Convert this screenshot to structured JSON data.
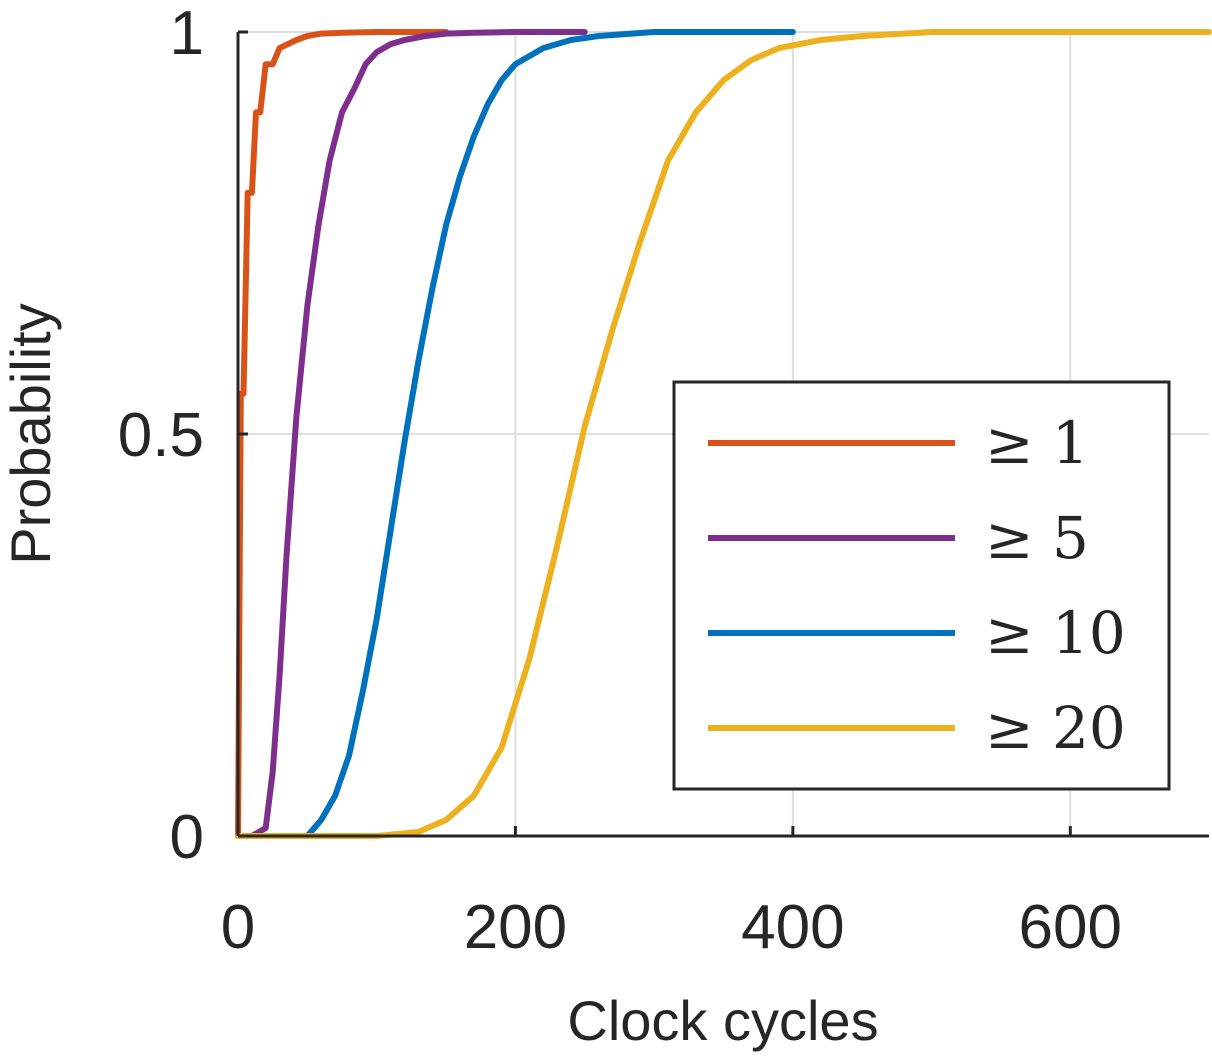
{
  "chart_data": {
    "type": "line",
    "title": "",
    "xlabel": "Clock cycles",
    "ylabel": "Probability",
    "xlim": [
      0,
      700
    ],
    "ylim": [
      0,
      1
    ],
    "xticks": [
      0,
      200,
      400,
      600
    ],
    "xtick_labels": [
      "0",
      "200",
      "400",
      "600"
    ],
    "yticks": [
      0,
      0.5,
      1
    ],
    "ytick_labels": [
      "0",
      "0.5",
      "1"
    ],
    "grid": true,
    "legend_position": "bottom-right",
    "series": [
      {
        "name": "≥ 1",
        "color": "#D95319",
        "x": [
          0,
          2,
          4,
          7,
          10,
          13,
          16,
          20,
          25,
          30,
          36,
          42,
          50,
          60,
          75,
          100,
          150
        ],
        "y": [
          0,
          0.55,
          0.55,
          0.8,
          0.8,
          0.9,
          0.9,
          0.96,
          0.96,
          0.98,
          0.985,
          0.99,
          0.995,
          0.998,
          0.999,
          1.0,
          1.0
        ]
      },
      {
        "name": "≥ 5",
        "color": "#7E2F8E",
        "x": [
          10,
          20,
          25,
          30,
          35,
          42,
          50,
          58,
          66,
          75,
          84,
          92,
          100,
          110,
          120,
          135,
          150,
          170,
          200,
          250
        ],
        "y": [
          0,
          0.01,
          0.08,
          0.2,
          0.35,
          0.52,
          0.66,
          0.76,
          0.84,
          0.9,
          0.93,
          0.96,
          0.975,
          0.985,
          0.99,
          0.995,
          0.998,
          0.999,
          1.0,
          1.0
        ]
      },
      {
        "name": "≥ 10",
        "color": "#0072BD",
        "x": [
          50,
          60,
          70,
          80,
          90,
          100,
          110,
          120,
          130,
          140,
          150,
          160,
          170,
          180,
          190,
          200,
          220,
          240,
          260,
          300,
          400
        ],
        "y": [
          0,
          0.02,
          0.05,
          0.1,
          0.18,
          0.27,
          0.38,
          0.49,
          0.59,
          0.68,
          0.76,
          0.82,
          0.87,
          0.91,
          0.94,
          0.96,
          0.98,
          0.99,
          0.995,
          1.0,
          1.0
        ]
      },
      {
        "name": "≥ 20",
        "color": "#EDB120",
        "x": [
          0,
          100,
          130,
          150,
          170,
          190,
          210,
          230,
          250,
          270,
          290,
          310,
          330,
          350,
          370,
          390,
          420,
          450,
          500,
          700
        ],
        "y": [
          0,
          0,
          0.005,
          0.02,
          0.05,
          0.11,
          0.22,
          0.36,
          0.51,
          0.63,
          0.74,
          0.84,
          0.9,
          0.94,
          0.965,
          0.98,
          0.99,
          0.995,
          1.0,
          1.0
        ]
      }
    ]
  }
}
